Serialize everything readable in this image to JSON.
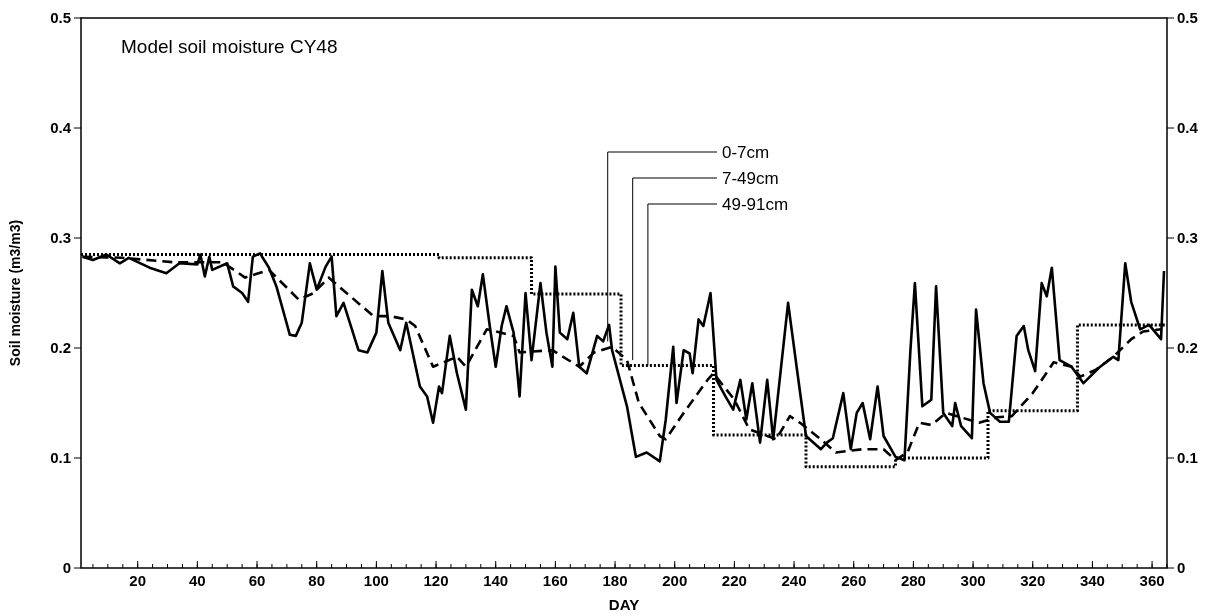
{
  "chart_data": {
    "type": "line",
    "title": "Model soil moisture CY48",
    "xlabel": "DAY",
    "ylabel": "Soil moisture (m3/m3)",
    "xlim": [
      1,
      365
    ],
    "xticks": [
      20,
      40,
      60,
      80,
      100,
      120,
      140,
      160,
      180,
      200,
      220,
      240,
      260,
      280,
      300,
      320,
      340,
      360
    ],
    "ylim": [
      0,
      0.5
    ],
    "yticks": [
      0,
      0.1,
      0.2,
      0.3,
      0.4,
      0.5
    ],
    "y2lim": [
      0,
      0.5
    ],
    "y2ticks": [
      0,
      0.1,
      0.2,
      0.3,
      0.4,
      0.5
    ],
    "grid": false,
    "marker": "none",
    "series": [
      {
        "name": "0-7cm",
        "color": "#000000",
        "line_style": "solid",
        "x": [
          1.5,
          5,
          9.5,
          14,
          17,
          24,
          29.6,
          34,
          40,
          41,
          42.5,
          44,
          45,
          50,
          52,
          55,
          57,
          58.6,
          61,
          64,
          66.5,
          71,
          73,
          75,
          77.7,
          80,
          83,
          85,
          86.6,
          89,
          94,
          97,
          100,
          102,
          104,
          108,
          110,
          114.6,
          117,
          119,
          121,
          122,
          124.6,
          127,
          130,
          132,
          134,
          135.7,
          138,
          140,
          142,
          143.6,
          146,
          148,
          150,
          152,
          155,
          157,
          159,
          160,
          161.5,
          164,
          166,
          168,
          170.5,
          174,
          176,
          178,
          179,
          184,
          187,
          190.6,
          195,
          197,
          199.5,
          200.6,
          203,
          205,
          206,
          208,
          209.6,
          212,
          214,
          217,
          219.6,
          222,
          224,
          226,
          228.6,
          231,
          233,
          238,
          241,
          244,
          249,
          251,
          253,
          256.5,
          259,
          261,
          263,
          265.5,
          268,
          270,
          274,
          277,
          279,
          280.5,
          283,
          286,
          287.6,
          290,
          293,
          294,
          296,
          299.6,
          301,
          303.5,
          305.7,
          309,
          312,
          314.6,
          317,
          318.5,
          320.8,
          323,
          324.7,
          326.4,
          329,
          333,
          337,
          342.6,
          347,
          348.7,
          351,
          353,
          356,
          359,
          363,
          364
        ],
        "values": [
          0.283,
          0.28,
          0.285,
          0.277,
          0.282,
          0.273,
          0.268,
          0.277,
          0.276,
          0.285,
          0.265,
          0.283,
          0.271,
          0.277,
          0.256,
          0.25,
          0.242,
          0.283,
          0.286,
          0.273,
          0.256,
          0.212,
          0.211,
          0.223,
          0.277,
          0.253,
          0.274,
          0.283,
          0.229,
          0.241,
          0.198,
          0.196,
          0.214,
          0.27,
          0.223,
          0.198,
          0.223,
          0.165,
          0.156,
          0.132,
          0.165,
          0.159,
          0.211,
          0.177,
          0.144,
          0.253,
          0.238,
          0.267,
          0.22,
          0.183,
          0.22,
          0.238,
          0.214,
          0.156,
          0.25,
          0.189,
          0.259,
          0.214,
          0.183,
          0.274,
          0.214,
          0.208,
          0.232,
          0.183,
          0.177,
          0.211,
          0.206,
          0.221,
          0.198,
          0.147,
          0.101,
          0.105,
          0.097,
          0.135,
          0.201,
          0.15,
          0.198,
          0.195,
          0.177,
          0.226,
          0.22,
          0.25,
          0.171,
          0.156,
          0.144,
          0.171,
          0.135,
          0.168,
          0.114,
          0.171,
          0.117,
          0.241,
          0.18,
          0.12,
          0.108,
          0.114,
          0.118,
          0.159,
          0.108,
          0.141,
          0.15,
          0.117,
          0.165,
          0.12,
          0.101,
          0.098,
          0.198,
          0.259,
          0.147,
          0.153,
          0.256,
          0.141,
          0.129,
          0.15,
          0.129,
          0.118,
          0.235,
          0.168,
          0.141,
          0.133,
          0.133,
          0.211,
          0.22,
          0.198,
          0.179,
          0.259,
          0.247,
          0.273,
          0.189,
          0.183,
          0.168,
          0.183,
          0.192,
          0.189,
          0.277,
          0.242,
          0.217,
          0.221,
          0.208,
          0.27
        ]
      },
      {
        "name": "7-49cm",
        "color": "#000000",
        "line_style": "dashed",
        "x": [
          1.5,
          15,
          32,
          48.5,
          56,
          64,
          74,
          79,
          84,
          99,
          104.5,
          110,
          113,
          119,
          127,
          130,
          137,
          146,
          148,
          159,
          168,
          173,
          179,
          184,
          188,
          195,
          197,
          203,
          211,
          213,
          220,
          225,
          234,
          238.6,
          242,
          249,
          254,
          263,
          270,
          274,
          278,
          282,
          286,
          291,
          302,
          308,
          313,
          320,
          327,
          333,
          336,
          341,
          347,
          353,
          357,
          363
        ],
        "values": [
          0.283,
          0.282,
          0.278,
          0.278,
          0.264,
          0.271,
          0.244,
          0.25,
          0.264,
          0.229,
          0.229,
          0.226,
          0.22,
          0.183,
          0.192,
          0.183,
          0.217,
          0.211,
          0.196,
          0.198,
          0.183,
          0.196,
          0.201,
          0.189,
          0.15,
          0.12,
          0.117,
          0.141,
          0.171,
          0.177,
          0.153,
          0.126,
          0.117,
          0.138,
          0.132,
          0.117,
          0.105,
          0.108,
          0.108,
          0.098,
          0.105,
          0.132,
          0.13,
          0.141,
          0.132,
          0.137,
          0.138,
          0.159,
          0.187,
          0.183,
          0.174,
          0.18,
          0.192,
          0.208,
          0.215,
          0.217
        ]
      },
      {
        "name": "49-91cm",
        "type": "step",
        "color": "#000000",
        "line_style": "dotted",
        "x": [
          1,
          121,
          152,
          182,
          213,
          244,
          274,
          305,
          335,
          365
        ],
        "values": [
          0.285,
          0.282,
          0.249,
          0.184,
          0.121,
          0.092,
          0.1,
          0.143,
          0.221,
          0.221
        ]
      }
    ]
  }
}
